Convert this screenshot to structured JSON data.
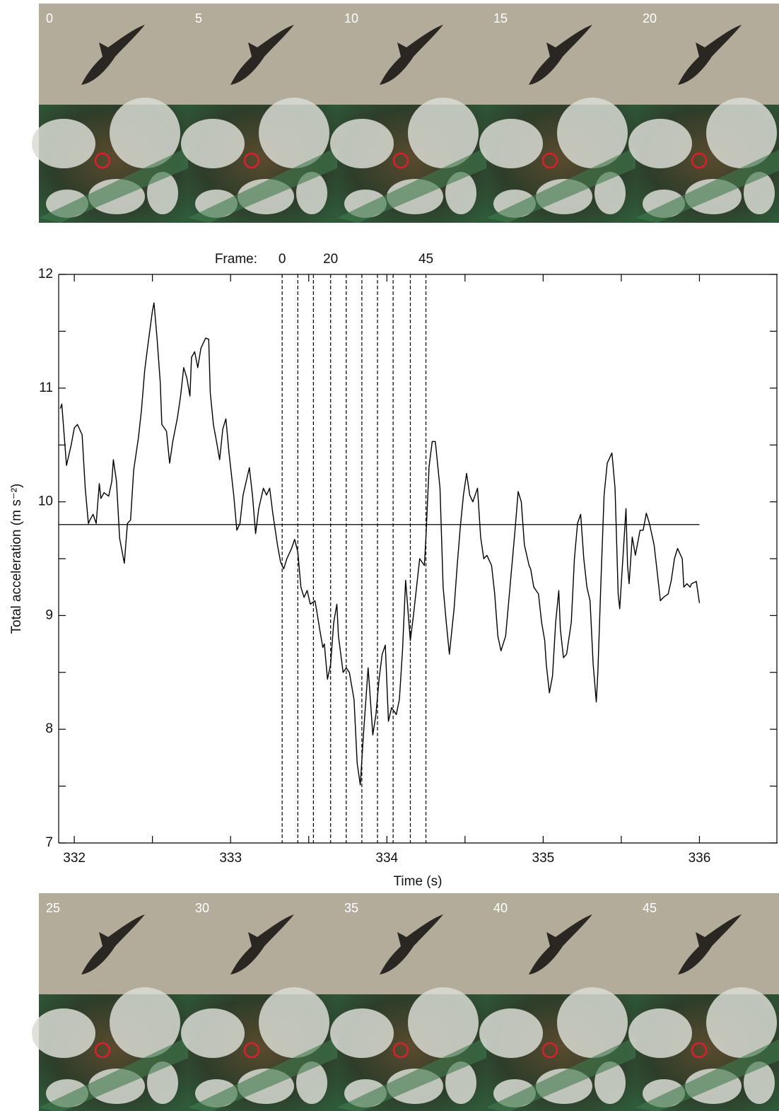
{
  "panels": {
    "top": [
      0,
      5,
      10,
      15,
      20
    ],
    "bottom": [
      25,
      30,
      35,
      40,
      45
    ]
  },
  "chart_data": {
    "type": "line",
    "color": "#000000",
    "x_label": "Time (s)",
    "y_label": "Total acceleration (m s⁻²)",
    "xlim": [
      331.9,
      336.5
    ],
    "ylim": [
      7,
      12
    ],
    "xticks": [
      332,
      333,
      334,
      335,
      336
    ],
    "yticks": [
      7,
      8,
      9,
      10,
      11,
      12
    ],
    "x_minor_ticks": [
      332.5,
      333.5,
      334.5,
      335.5
    ],
    "y_minor_ticks": [
      7.5,
      8.5,
      9.5,
      10.5,
      11.5
    ],
    "reference_line": {
      "value": 9.8,
      "x_end": 336
    },
    "frame_label": "Frame:",
    "frame_lines": [
      {
        "time": 333.33,
        "label": 0
      },
      {
        "time": 333.43
      },
      {
        "time": 333.53
      },
      {
        "time": 333.64,
        "label": 20
      },
      {
        "time": 333.74
      },
      {
        "time": 333.84
      },
      {
        "time": 333.94
      },
      {
        "time": 334.04
      },
      {
        "time": 334.15
      },
      {
        "time": 334.25,
        "label": 45
      }
    ],
    "x": [
      331.91,
      331.92,
      331.95,
      331.98,
      332.0,
      332.02,
      332.05,
      332.07,
      332.09,
      332.1,
      332.12,
      332.14,
      332.16,
      332.17,
      332.19,
      332.22,
      332.24,
      332.25,
      332.27,
      332.29,
      332.32,
      332.34,
      332.36,
      332.38,
      332.41,
      332.43,
      332.45,
      332.47,
      332.5,
      332.51,
      332.53,
      332.55,
      332.56,
      332.59,
      332.61,
      332.63,
      332.66,
      332.68,
      332.7,
      332.72,
      332.74,
      332.75,
      332.77,
      332.79,
      332.81,
      332.84,
      332.86,
      332.87,
      332.89,
      332.91,
      332.93,
      332.95,
      332.97,
      332.99,
      333.02,
      333.04,
      333.06,
      333.08,
      333.12,
      333.14,
      333.16,
      333.18,
      333.21,
      333.23,
      333.25,
      333.27,
      333.3,
      333.32,
      333.34,
      333.36,
      333.39,
      333.41,
      333.43,
      333.45,
      333.47,
      333.49,
      333.51,
      333.54,
      333.55,
      333.57,
      333.59,
      333.6,
      333.62,
      333.64,
      333.66,
      333.68,
      333.69,
      333.72,
      333.74,
      333.76,
      333.79,
      333.81,
      333.83,
      333.85,
      333.88,
      333.89,
      333.91,
      333.93,
      333.95,
      333.97,
      333.99,
      334.01,
      334.03,
      334.06,
      334.08,
      334.1,
      334.12,
      334.15,
      334.17,
      334.19,
      334.21,
      334.24,
      334.25,
      334.27,
      334.29,
      334.31,
      334.34,
      334.36,
      334.38,
      334.4,
      334.43,
      334.45,
      334.47,
      334.49,
      334.51,
      334.53,
      334.55,
      334.58,
      334.6,
      334.62,
      334.64,
      334.67,
      334.69,
      334.71,
      334.73,
      334.76,
      334.78,
      334.8,
      334.82,
      334.84,
      334.86,
      334.88,
      334.91,
      334.92,
      334.94,
      334.97,
      334.99,
      335.01,
      335.02,
      335.04,
      335.06,
      335.08,
      335.1,
      335.11,
      335.13,
      335.15,
      335.18,
      335.2,
      335.22,
      335.24,
      335.26,
      335.28,
      335.3,
      335.32,
      335.34,
      335.35,
      335.37,
      335.39,
      335.41,
      335.44,
      335.46,
      335.48,
      335.49,
      335.51,
      335.53,
      335.54,
      335.55,
      335.57,
      335.59,
      335.62,
      335.64,
      335.66,
      335.68,
      335.71,
      335.73,
      335.75,
      335.77,
      335.8,
      335.82,
      335.84,
      335.86,
      335.89,
      335.9,
      335.92,
      335.94,
      335.95,
      335.98,
      336.0
    ],
    "values": [
      10.82,
      10.86,
      10.32,
      10.5,
      10.65,
      10.68,
      10.59,
      10.12,
      9.81,
      9.84,
      9.89,
      9.81,
      10.16,
      10.03,
      10.08,
      10.05,
      10.18,
      10.37,
      10.18,
      9.68,
      9.46,
      9.81,
      9.84,
      10.28,
      10.56,
      10.81,
      11.15,
      11.37,
      11.68,
      11.75,
      11.43,
      11.05,
      10.68,
      10.62,
      10.34,
      10.53,
      10.74,
      10.93,
      11.18,
      11.09,
      10.93,
      11.27,
      11.32,
      11.18,
      11.35,
      11.44,
      11.43,
      10.96,
      10.68,
      10.53,
      10.37,
      10.64,
      10.73,
      10.43,
      10.06,
      9.75,
      9.81,
      10.06,
      10.3,
      10.06,
      9.72,
      9.94,
      10.12,
      10.06,
      10.12,
      9.9,
      9.62,
      9.47,
      9.41,
      9.5,
      9.59,
      9.67,
      9.56,
      9.25,
      9.16,
      9.22,
      9.1,
      9.13,
      9.05,
      8.88,
      8.72,
      8.75,
      8.44,
      8.57,
      8.94,
      9.1,
      8.82,
      8.5,
      8.54,
      8.5,
      8.26,
      7.7,
      7.51,
      7.95,
      8.54,
      8.35,
      7.95,
      8.13,
      8.44,
      8.66,
      8.74,
      8.07,
      8.19,
      8.13,
      8.26,
      8.69,
      9.31,
      8.78,
      9.0,
      9.25,
      9.5,
      9.44,
      9.69,
      10.31,
      10.53,
      10.53,
      10.12,
      9.25,
      8.94,
      8.66,
      9.06,
      9.44,
      9.78,
      10.06,
      10.25,
      10.06,
      10.0,
      10.12,
      9.69,
      9.5,
      9.53,
      9.44,
      9.19,
      8.82,
      8.69,
      8.82,
      9.13,
      9.44,
      9.75,
      10.09,
      10.0,
      9.62,
      9.44,
      9.41,
      9.25,
      9.19,
      8.94,
      8.78,
      8.57,
      8.32,
      8.47,
      8.94,
      9.22,
      8.88,
      8.63,
      8.66,
      8.94,
      9.5,
      9.81,
      9.89,
      9.5,
      9.25,
      9.13,
      8.57,
      8.24,
      8.5,
      9.31,
      10.06,
      10.34,
      10.43,
      10.12,
      9.19,
      9.06,
      9.5,
      9.94,
      9.44,
      9.28,
      9.69,
      9.53,
      9.75,
      9.75,
      9.9,
      9.81,
      9.62,
      9.38,
      9.13,
      9.16,
      9.19,
      9.31,
      9.5,
      9.59,
      9.5,
      9.25,
      9.28,
      9.25,
      9.28,
      9.3,
      9.11
    ]
  }
}
